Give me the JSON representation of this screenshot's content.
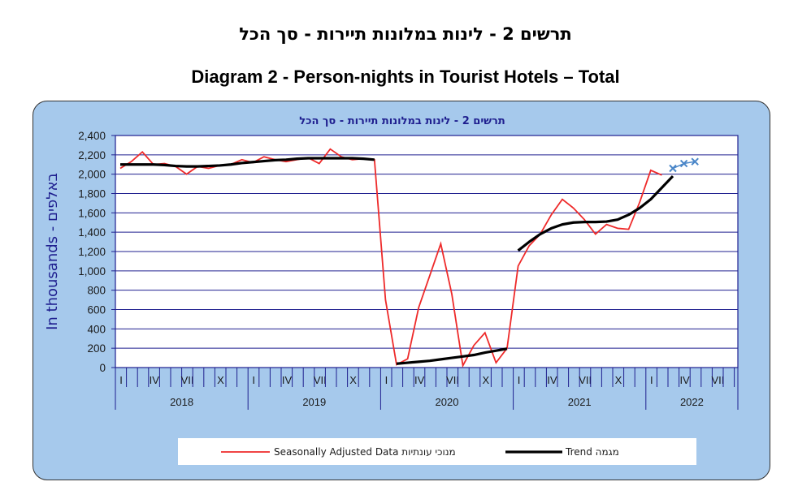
{
  "heading": {
    "hebrew": "תרשים 2 - לינות במלונות תיירות - סך הכל",
    "english": "Diagram 2 - Person-nights in Tourist Hotels – Total"
  },
  "chart_data": {
    "type": "line",
    "title": "תרשים 2 - לינות במלונות תיירות - סך הכל",
    "ylabel": "In thousands - באלפים",
    "ylim": [
      0,
      2400
    ],
    "yticks": [
      "0",
      "200",
      "400",
      "600",
      "800",
      "1,000",
      "1,200",
      "1,400",
      "1,600",
      "1,800",
      "2,000",
      "2,200",
      "2,400"
    ],
    "month_tick_labels": [
      "I",
      "IV",
      "VII",
      "X"
    ],
    "year_labels": [
      "2018",
      "2019",
      "2020",
      "2021",
      "2022"
    ],
    "grid": true,
    "colors": {
      "seasonal": "#ee2a2a",
      "trend": "#000000",
      "forecast": "#4a86c8",
      "panel": "#a6c9ec",
      "plot": "#ffffff",
      "frame": "#1f1f8f"
    },
    "legend": [
      {
        "label": "Seasonally Adjusted  Data   מנוכי עונתיות",
        "color": "#ee2a2a"
      },
      {
        "label": "Trend  מגמה",
        "color": "#000000"
      }
    ],
    "series": [
      {
        "name": "Seasonally Adjusted  Data   מנוכי עונתיות",
        "start": "2018-01",
        "values": [
          2060,
          2130,
          2230,
          2100,
          2110,
          2080,
          2000,
          2080,
          2060,
          2090,
          2100,
          2150,
          2120,
          2180,
          2150,
          2130,
          2150,
          2170,
          2110,
          2260,
          2180,
          2150,
          2160,
          2150,
          700,
          30,
          90,
          620,
          950,
          1280,
          760,
          20,
          230,
          360,
          50,
          200,
          1050,
          1260,
          1380,
          1580,
          1740,
          1650,
          1530,
          1380,
          1480,
          1440,
          1430,
          1710,
          2040,
          1990
        ]
      },
      {
        "name": "Trend  מגמה",
        "segments": [
          {
            "start": "2018-01",
            "values": [
              2100,
              2100,
              2100,
              2100,
              2095,
              2085,
              2080,
              2080,
              2085,
              2090,
              2100,
              2115,
              2125,
              2135,
              2145,
              2150,
              2160,
              2165,
              2165,
              2165,
              2165,
              2165,
              2160,
              2150
            ]
          },
          {
            "start": "2020-02",
            "values": [
              40,
              50,
              60,
              70,
              85,
              100,
              115,
              130,
              155,
              175,
              195
            ]
          },
          {
            "start": "2021-01",
            "values": [
              1210,
              1300,
              1380,
              1440,
              1480,
              1500,
              1505,
              1505,
              1510,
              1530,
              1580,
              1650,
              1740,
              1860,
              1980
            ]
          }
        ]
      },
      {
        "name": "",
        "start": "2022-03",
        "values": [
          2060,
          2110,
          2130
        ]
      }
    ]
  }
}
